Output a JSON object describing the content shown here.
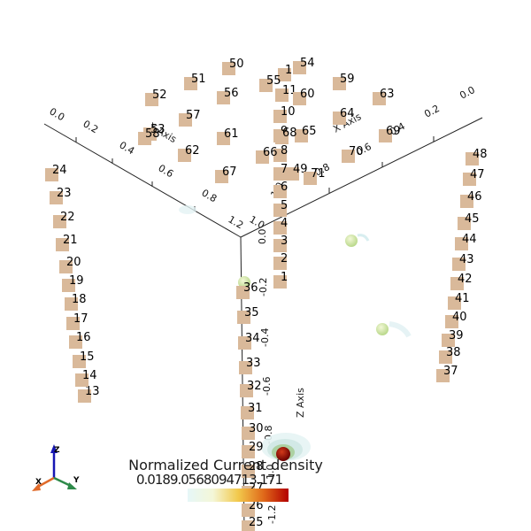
{
  "legend": {
    "title": "Normalized Current density",
    "range_text": "0.0189.0568094713.171",
    "colors": [
      "#e6f7f8",
      "#f4f7d8",
      "#f2c94c",
      "#e06a1a",
      "#b30000"
    ]
  },
  "axes": {
    "x_axis_label": "X Axis",
    "y_axis_label": "Y Axis",
    "z_axis_label": "Z Axis",
    "y_ticks": [
      "0.0",
      "0.2",
      "0.4",
      "0.6",
      "0.8",
      "1.0",
      "1.2"
    ],
    "x_ticks": [
      "0.0",
      "0.2",
      "0.4",
      "0.6",
      "0.8",
      "1.0"
    ],
    "z_ticks": [
      "0.0",
      "-0.2",
      "-0.4",
      "-0.6",
      "-0.8",
      "-1.0",
      "-1.2"
    ]
  },
  "orientation": {
    "x": "X",
    "y": "Y",
    "z": "Z"
  },
  "electrodes": [
    "1",
    "2",
    "3",
    "4",
    "5",
    "6",
    "7",
    "8",
    "9",
    "10",
    "11",
    "12",
    "13",
    "14",
    "15",
    "16",
    "17",
    "18",
    "19",
    "20",
    "21",
    "22",
    "23",
    "24",
    "25",
    "26",
    "27",
    "28",
    "29",
    "30",
    "31",
    "32",
    "33",
    "34",
    "35",
    "36",
    "37",
    "38",
    "39",
    "40",
    "41",
    "42",
    "43",
    "44",
    "45",
    "46",
    "47",
    "48",
    "49",
    "50",
    "51",
    "52",
    "53",
    "54",
    "55",
    "56",
    "57",
    "58",
    "59",
    "60",
    "61",
    "62",
    "63",
    "64",
    "65",
    "66",
    "67",
    "68",
    "69",
    "70",
    "71"
  ]
}
